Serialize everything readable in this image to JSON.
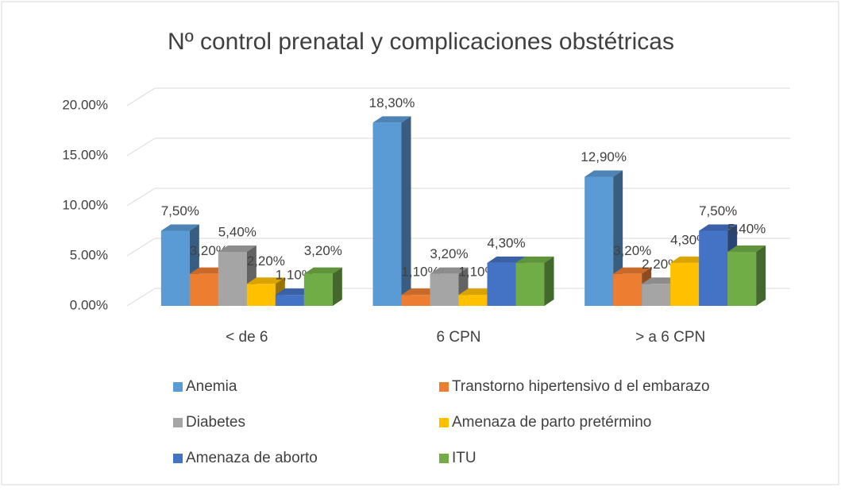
{
  "chart_data": {
    "type": "bar3d",
    "title": "Nº control prenatal y complicaciones obstétricas",
    "categories": [
      "< de 6",
      "6 CPN",
      "> a 6 CPN"
    ],
    "series": [
      {
        "name": "Anemia",
        "color": "#5b9bd5",
        "values": [
          7.5,
          18.3,
          12.9
        ],
        "value_labels": [
          "7,50%",
          "18,30%",
          "12,90%"
        ]
      },
      {
        "name": "Transtorno hipertensivo d el embarazo",
        "color": "#ed7d31",
        "values": [
          3.2,
          1.1,
          3.2
        ],
        "value_labels": [
          "3,20%",
          "1,10%",
          "3,20%"
        ]
      },
      {
        "name": "Diabetes",
        "color": "#a5a5a5",
        "values": [
          5.4,
          3.2,
          2.2
        ],
        "value_labels": [
          "5,40%",
          "3,20%",
          "2,20%"
        ]
      },
      {
        "name": "Amenaza de parto pretérmino",
        "color": "#ffc000",
        "values": [
          2.2,
          1.1,
          4.3
        ],
        "value_labels": [
          "2,20%",
          "1,10%",
          "4,30%"
        ]
      },
      {
        "name": "Amenaza de aborto",
        "color": "#4472c4",
        "values": [
          1.1,
          4.3,
          7.5
        ],
        "value_labels": [
          "1,10%",
          "4,30%",
          "7,50%"
        ]
      },
      {
        "name": "ITU",
        "color": "#70ad47",
        "values": [
          3.2,
          4.3,
          5.4
        ],
        "value_labels": [
          "3,20%",
          null,
          "5,40%"
        ]
      }
    ],
    "ylim": [
      0,
      20
    ],
    "yticks": [
      {
        "value": 0,
        "label": "0.00%"
      },
      {
        "value": 5,
        "label": "5.00%"
      },
      {
        "value": 10,
        "label": "10.00%"
      },
      {
        "value": 15,
        "label": "15.00%"
      },
      {
        "value": 20,
        "label": "20.00%"
      }
    ],
    "grid": true
  }
}
